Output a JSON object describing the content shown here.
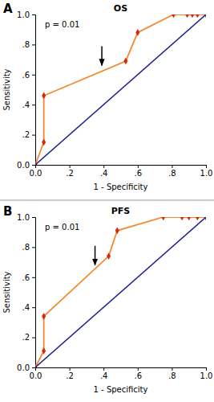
{
  "chart_data": [
    {
      "type": "line",
      "panel": "A",
      "title": "OS",
      "annotations": [
        {
          "text": "p = 0.01"
        }
      ],
      "arrow": {
        "x": 0.39,
        "y": 0.65
      },
      "x_label": "1 - Specificity",
      "y_label": "Sensitivity",
      "xlim": [
        0,
        1
      ],
      "ylim": [
        0,
        1
      ],
      "xticks": [
        {
          "value": 0,
          "label": "0.0"
        },
        {
          "value": 0.2,
          "label": ".2"
        },
        {
          "value": 0.4,
          "label": ".4"
        },
        {
          "value": 0.6,
          "label": ".6"
        },
        {
          "value": 0.8,
          "label": ".8"
        },
        {
          "value": 1,
          "label": "1.0"
        }
      ],
      "yticks": [
        {
          "value": 0,
          "label": "0.0"
        },
        {
          "value": 0.2,
          "label": ".2"
        },
        {
          "value": 0.4,
          "label": ".4"
        },
        {
          "value": 0.6,
          "label": ".6"
        },
        {
          "value": 0.8,
          "label": ".8"
        },
        {
          "value": 1,
          "label": "1.0"
        }
      ],
      "series": [
        {
          "color": "#f28a2e",
          "marker": "diamond",
          "line_style": "solid",
          "x": [
            0,
            0.05,
            0.05,
            0.53,
            0.6,
            0.81,
            0.89,
            0.92,
            0.95,
            1
          ],
          "values": [
            0,
            0.15,
            0.46,
            0.69,
            0.88,
            1,
            1,
            1,
            1,
            1
          ]
        },
        {
          "color": "#1f1f8f",
          "marker": "none",
          "line_style": "solid",
          "x": [
            0,
            1
          ],
          "values": [
            0,
            1
          ]
        }
      ]
    },
    {
      "type": "line",
      "panel": "B",
      "title": "PFS",
      "annotations": [
        {
          "text": "p = 0.01"
        }
      ],
      "arrow": {
        "x": 0.35,
        "y": 0.67
      },
      "x_label": "1 - Specificity",
      "y_label": "Sensitivity",
      "xlim": [
        0,
        1
      ],
      "ylim": [
        0,
        1
      ],
      "xticks": [
        {
          "value": 0,
          "label": "0.0"
        },
        {
          "value": 0.2,
          "label": ".2"
        },
        {
          "value": 0.4,
          "label": ".4"
        },
        {
          "value": 0.6,
          "label": ".6"
        },
        {
          "value": 0.8,
          "label": ".8"
        },
        {
          "value": 1,
          "label": "1.0"
        }
      ],
      "yticks": [
        {
          "value": 0,
          "label": "0.0"
        },
        {
          "value": 0.2,
          "label": ".2"
        },
        {
          "value": 0.4,
          "label": ".4"
        },
        {
          "value": 0.6,
          "label": ".6"
        },
        {
          "value": 0.8,
          "label": ".8"
        },
        {
          "value": 1,
          "label": "1.0"
        }
      ],
      "series": [
        {
          "color": "#f28a2e",
          "marker": "diamond",
          "line_style": "solid",
          "x": [
            0,
            0.05,
            0.05,
            0.43,
            0.48,
            0.75,
            0.86,
            0.9,
            0.95,
            1
          ],
          "values": [
            0,
            0.11,
            0.34,
            0.74,
            0.91,
            1,
            1,
            1,
            1,
            1
          ]
        },
        {
          "color": "#1f1f8f",
          "marker": "none",
          "line_style": "solid",
          "x": [
            0,
            1
          ],
          "values": [
            0,
            1
          ]
        }
      ]
    }
  ]
}
